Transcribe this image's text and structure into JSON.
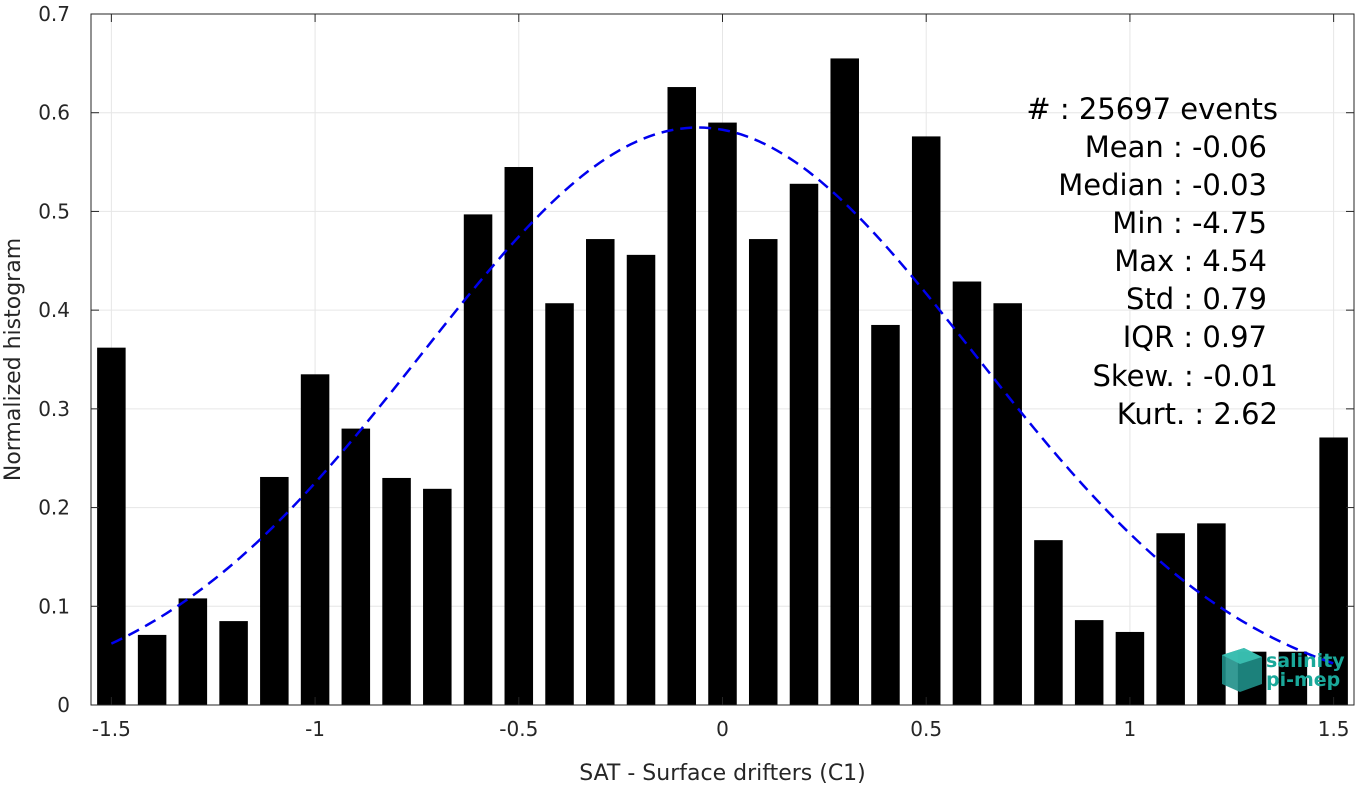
{
  "chart_data": {
    "type": "bar",
    "xlabel": "SAT - Surface drifters (C1)",
    "ylabel": "Normalized histogram",
    "xlim": [
      -1.55,
      1.55
    ],
    "ylim": [
      0,
      0.7
    ],
    "grid": true,
    "x_ticks": [
      -1.5,
      -1,
      -0.5,
      0,
      0.5,
      1,
      1.5
    ],
    "x_tick_labels": [
      "-1.5",
      "-1",
      "-0.5",
      "0",
      "0.5",
      "1",
      "1.5"
    ],
    "y_ticks": [
      0,
      0.1,
      0.2,
      0.3,
      0.4,
      0.5,
      0.6,
      0.7
    ],
    "y_tick_labels": [
      "0",
      "0.1",
      "0.2",
      "0.3",
      "0.4",
      "0.5",
      "0.6",
      "0.7"
    ],
    "bar_color": "#000000",
    "bar_width": 0.07,
    "x": [
      -1.5,
      -1.4,
      -1.3,
      -1.2,
      -1.1,
      -1.0,
      -0.9,
      -0.8,
      -0.7,
      -0.6,
      -0.5,
      -0.4,
      -0.3,
      -0.2,
      -0.1,
      0.0,
      0.1,
      0.2,
      0.3,
      0.4,
      0.5,
      0.6,
      0.7,
      0.8,
      0.9,
      1.0,
      1.1,
      1.2,
      1.3,
      1.4,
      1.5
    ],
    "values": [
      0.362,
      0.071,
      0.108,
      0.085,
      0.231,
      0.335,
      0.28,
      0.23,
      0.219,
      0.497,
      0.545,
      0.407,
      0.472,
      0.456,
      0.626,
      0.59,
      0.472,
      0.528,
      0.655,
      0.385,
      0.576,
      0.429,
      0.407,
      0.167,
      0.086,
      0.074,
      0.174,
      0.184,
      0.054,
      0.054,
      0.271
    ],
    "fit_curve": {
      "style": "dashed",
      "color": "#0000ee",
      "mean": -0.06,
      "std": 0.68,
      "peak": 0.585,
      "x_range": [
        -1.5,
        1.5
      ]
    }
  },
  "stats": [
    {
      "label": "#  ",
      "value": "25697 events",
      "line": "#  : 25697 events"
    },
    {
      "label": "Mean",
      "value": "-0.06",
      "line": "Mean : -0.06"
    },
    {
      "label": "Median",
      "value": "-0.03",
      "line": "Median : -0.03"
    },
    {
      "label": "Min",
      "value": "-4.75",
      "line": "Min : -4.75"
    },
    {
      "label": "Max",
      "value": "4.54",
      "line": "Max : 4.54"
    },
    {
      "label": "Std",
      "value": "0.79",
      "line": "Std : 0.79"
    },
    {
      "label": "IQR",
      "value": "0.97",
      "line": "IQR : 0.97"
    },
    {
      "label": "Skew.",
      "value": "-0.01",
      "line": "Skew. : -0.01"
    },
    {
      "label": "Kurt.",
      "value": "2.62",
      "line": "Kurt. : 2.62"
    }
  ],
  "logo": {
    "line1": "salinity",
    "line2": "pi-mep",
    "color": "#1aa89a"
  }
}
